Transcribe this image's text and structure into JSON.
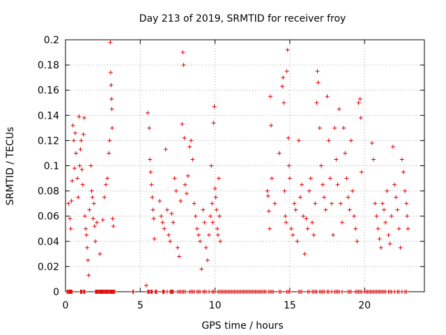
{
  "chart_data": {
    "type": "scatter",
    "title": "Day 213 of 2019, SRMTID for receiver froy",
    "xlabel": "GPS time / hours",
    "ylabel": "SRMTID / TECUs",
    "xlim": [
      0,
      24
    ],
    "ylim": [
      0,
      0.2
    ],
    "xticks": [
      0,
      5,
      10,
      15,
      20
    ],
    "yticks": [
      0,
      0.02,
      0.04,
      0.06,
      0.08,
      0.1,
      0.12,
      0.14,
      0.16,
      0.18,
      0.2
    ],
    "ytick_labels": [
      "0",
      "0.02",
      "0.04",
      "0.06",
      "0.08",
      "0.1",
      "0.12",
      "0.14",
      "0.16",
      "0.18",
      "0.2"
    ],
    "grid": true,
    "marker": "+",
    "color": "#e00000",
    "series": [
      {
        "name": "SRMTID",
        "points": [
          [
            0.2,
            0.07
          ],
          [
            0.3,
            0.058
          ],
          [
            0.35,
            0.05
          ],
          [
            0.4,
            0.072
          ],
          [
            0.45,
            0.088
          ],
          [
            0.5,
            0.132
          ],
          [
            0.55,
            0.12
          ],
          [
            0.6,
            0.098
          ],
          [
            0.65,
            0.126
          ],
          [
            0.7,
            0.11
          ],
          [
            0.8,
            0.09
          ],
          [
            0.85,
            0.075
          ],
          [
            0.9,
            0.139
          ],
          [
            0.95,
            0.1
          ],
          [
            1.0,
            0.113
          ],
          [
            1.05,
            0.12
          ],
          [
            1.1,
            0.097
          ],
          [
            1.15,
            0.085
          ],
          [
            1.2,
            0.125
          ],
          [
            1.25,
            0.138
          ],
          [
            1.3,
            0.06
          ],
          [
            1.35,
            0.05
          ],
          [
            1.4,
            0.045
          ],
          [
            1.45,
            0.035
          ],
          [
            1.5,
            0.025
          ],
          [
            1.55,
            0.013
          ],
          [
            1.6,
            0.065
          ],
          [
            1.7,
            0.1
          ],
          [
            1.75,
            0.08
          ],
          [
            1.8,
            0.075
          ],
          [
            1.85,
            0.058
          ],
          [
            1.9,
            0.07
          ],
          [
            1.95,
            0.052
          ],
          [
            2.0,
            0.04
          ],
          [
            2.1,
            0.055
          ],
          [
            2.3,
            0.03
          ],
          [
            2.5,
            0.057
          ],
          [
            2.6,
            0.075
          ],
          [
            2.7,
            0.085
          ],
          [
            2.8,
            0.09
          ],
          [
            2.9,
            0.11
          ],
          [
            2.95,
            0.12
          ],
          [
            3.0,
            0.198
          ],
          [
            3.02,
            0.174
          ],
          [
            3.05,
            0.164
          ],
          [
            3.08,
            0.153
          ],
          [
            3.1,
            0.145
          ],
          [
            3.12,
            0.13
          ],
          [
            3.15,
            0.058
          ],
          [
            3.2,
            0.052
          ],
          [
            5.4,
            0.005
          ],
          [
            5.5,
            0.142
          ],
          [
            5.6,
            0.13
          ],
          [
            5.65,
            0.105
          ],
          [
            5.7,
            0.095
          ],
          [
            5.75,
            0.085
          ],
          [
            5.8,
            0.075
          ],
          [
            5.85,
            0.065
          ],
          [
            5.9,
            0.058
          ],
          [
            5.95,
            0.042
          ],
          [
            6.3,
            0.072
          ],
          [
            6.4,
            0.06
          ],
          [
            6.5,
            0.055
          ],
          [
            6.6,
            0.05
          ],
          [
            6.7,
            0.113
          ],
          [
            6.8,
            0.065
          ],
          [
            6.9,
            0.045
          ],
          [
            7.0,
            0.04
          ],
          [
            7.1,
            0.062
          ],
          [
            7.2,
            0.055
          ],
          [
            7.3,
            0.09
          ],
          [
            7.4,
            0.08
          ],
          [
            7.5,
            0.035
          ],
          [
            7.6,
            0.028
          ],
          [
            7.7,
            0.072
          ],
          [
            7.8,
            0.133
          ],
          [
            7.85,
            0.19
          ],
          [
            7.9,
            0.18
          ],
          [
            7.95,
            0.122
          ],
          [
            8.0,
            0.085
          ],
          [
            8.1,
            0.078
          ],
          [
            8.2,
            0.092
          ],
          [
            8.3,
            0.115
          ],
          [
            8.4,
            0.12
          ],
          [
            8.5,
            0.105
          ],
          [
            8.6,
            0.07
          ],
          [
            8.7,
            0.06
          ],
          [
            8.8,
            0.05
          ],
          [
            8.9,
            0.045
          ],
          [
            9.0,
            0.04
          ],
          [
            9.1,
            0.018
          ],
          [
            9.2,
            0.065
          ],
          [
            9.3,
            0.055
          ],
          [
            9.4,
            0.035
          ],
          [
            9.5,
            0.025
          ],
          [
            9.6,
            0.045
          ],
          [
            9.7,
            0.06
          ],
          [
            9.75,
            0.1
          ],
          [
            9.8,
            0.07
          ],
          [
            9.85,
            0.055
          ],
          [
            9.9,
            0.134
          ],
          [
            9.95,
            0.147
          ],
          [
            10.0,
            0.082
          ],
          [
            10.05,
            0.075
          ],
          [
            10.1,
            0.065
          ],
          [
            10.15,
            0.05
          ],
          [
            10.2,
            0.045
          ],
          [
            10.25,
            0.09
          ],
          [
            10.3,
            0.06
          ],
          [
            10.35,
            0.04
          ],
          [
            13.5,
            0.08
          ],
          [
            13.55,
            0.076
          ],
          [
            13.6,
            0.064
          ],
          [
            13.65,
            0.05
          ],
          [
            13.7,
            0.155
          ],
          [
            13.75,
            0.132
          ],
          [
            13.8,
            0.09
          ],
          [
            14.0,
            0.07
          ],
          [
            14.3,
            0.11
          ],
          [
            14.5,
            0.163
          ],
          [
            14.55,
            0.17
          ],
          [
            14.6,
            0.15
          ],
          [
            14.65,
            0.08
          ],
          [
            14.7,
            0.06
          ],
          [
            14.75,
            0.055
          ],
          [
            14.8,
            0.175
          ],
          [
            14.85,
            0.192
          ],
          [
            14.9,
            0.122
          ],
          [
            14.95,
            0.1
          ],
          [
            15.0,
            0.09
          ],
          [
            15.1,
            0.05
          ],
          [
            15.2,
            0.045
          ],
          [
            15.3,
            0.07
          ],
          [
            15.4,
            0.065
          ],
          [
            15.5,
            0.04
          ],
          [
            15.6,
            0.12
          ],
          [
            15.7,
            0.075
          ],
          [
            15.8,
            0.085
          ],
          [
            15.9,
            0.06
          ],
          [
            16.0,
            0.03
          ],
          [
            16.1,
            0.058
          ],
          [
            16.2,
            0.05
          ],
          [
            16.3,
            0.08
          ],
          [
            16.4,
            0.09
          ],
          [
            16.5,
            0.055
          ],
          [
            16.6,
            0.045
          ],
          [
            16.7,
            0.07
          ],
          [
            16.8,
            0.15
          ],
          [
            16.85,
            0.175
          ],
          [
            16.9,
            0.166
          ],
          [
            17.0,
            0.13
          ],
          [
            17.1,
            0.1
          ],
          [
            17.2,
            0.085
          ],
          [
            17.3,
            0.075
          ],
          [
            17.4,
            0.065
          ],
          [
            17.5,
            0.155
          ],
          [
            17.6,
            0.12
          ],
          [
            17.7,
            0.09
          ],
          [
            17.8,
            0.07
          ],
          [
            17.9,
            0.045
          ],
          [
            18.0,
            0.13
          ],
          [
            18.1,
            0.105
          ],
          [
            18.2,
            0.085
          ],
          [
            18.3,
            0.145
          ],
          [
            18.4,
            0.07
          ],
          [
            18.5,
            0.055
          ],
          [
            18.6,
            0.13
          ],
          [
            18.7,
            0.11
          ],
          [
            18.8,
            0.09
          ],
          [
            18.9,
            0.075
          ],
          [
            19.0,
            0.065
          ],
          [
            19.1,
            0.12
          ],
          [
            19.2,
            0.08
          ],
          [
            19.3,
            0.06
          ],
          [
            19.4,
            0.05
          ],
          [
            19.5,
            0.04
          ],
          [
            19.6,
            0.15
          ],
          [
            19.7,
            0.153
          ],
          [
            19.75,
            0.138
          ],
          [
            19.8,
            0.095
          ],
          [
            20.5,
            0.118
          ],
          [
            20.6,
            0.105
          ],
          [
            20.7,
            0.07
          ],
          [
            20.8,
            0.06
          ],
          [
            20.9,
            0.05
          ],
          [
            21.0,
            0.042
          ],
          [
            21.1,
            0.035
          ],
          [
            21.2,
            0.07
          ],
          [
            21.3,
            0.065
          ],
          [
            21.4,
            0.055
          ],
          [
            21.5,
            0.08
          ],
          [
            21.6,
            0.045
          ],
          [
            21.7,
            0.038
          ],
          [
            21.8,
            0.06
          ],
          [
            21.9,
            0.115
          ],
          [
            22.0,
            0.085
          ],
          [
            22.1,
            0.075
          ],
          [
            22.2,
            0.065
          ],
          [
            22.3,
            0.05
          ],
          [
            22.4,
            0.035
          ],
          [
            22.5,
            0.105
          ],
          [
            22.6,
            0.095
          ],
          [
            22.7,
            0.08
          ],
          [
            22.8,
            0.07
          ],
          [
            22.85,
            0.06
          ],
          [
            22.9,
            0.05
          ]
        ],
        "zero_points": [
          0.1,
          0.15,
          0.2,
          0.25,
          0.3,
          0.35,
          0.4,
          0.45,
          1.0,
          1.05,
          1.1,
          1.2,
          1.25,
          1.3,
          2.0,
          2.05,
          2.1,
          2.15,
          2.2,
          2.25,
          2.3,
          2.35,
          2.4,
          2.45,
          2.5,
          2.55,
          2.6,
          2.65,
          2.7,
          2.75,
          2.8,
          2.85,
          2.9,
          2.95,
          3.0,
          3.05,
          3.1,
          3.15,
          3.2,
          3.25,
          3.3,
          4.5,
          4.55,
          5.5,
          5.55,
          5.6,
          5.7,
          5.75,
          5.8,
          6.0,
          6.05,
          6.1,
          6.5,
          6.55,
          6.6,
          6.8,
          7.0,
          7.05,
          7.1,
          7.15,
          7.2,
          7.5,
          7.6,
          7.7,
          7.8,
          7.9,
          8.0,
          8.3,
          8.4,
          8.5,
          8.6,
          8.8,
          8.9,
          9.0,
          9.2,
          9.3,
          9.4,
          9.6,
          9.8,
          9.9,
          10.0,
          10.2,
          10.3,
          10.4,
          10.5,
          10.6,
          10.7,
          10.8,
          10.9,
          11.0,
          11.1,
          11.2,
          11.3,
          11.4,
          11.5,
          11.6,
          11.7,
          11.8,
          11.9,
          12.0,
          12.1,
          12.2,
          12.3,
          12.4,
          12.5,
          12.6,
          12.7,
          12.8,
          12.9,
          13.0,
          13.1,
          13.2,
          13.3,
          13.4,
          13.6,
          13.7,
          13.8,
          13.9,
          14.3,
          14.4,
          14.8,
          14.9,
          15.0,
          15.6,
          15.7,
          15.8,
          16.2,
          16.3,
          16.5,
          16.6,
          16.7,
          16.8,
          17.0,
          17.1,
          17.2,
          17.3,
          17.5,
          17.6,
          17.8,
          18.0,
          18.1,
          18.2,
          18.3,
          18.5,
          18.9,
          19.0,
          19.1,
          19.4,
          19.5,
          19.6,
          19.7,
          19.8,
          20.0,
          20.1,
          20.2,
          20.3,
          20.4,
          20.5,
          20.6,
          20.7,
          20.8,
          20.9,
          21.0,
          21.1,
          21.2,
          21.3,
          21.4,
          21.6,
          21.7,
          21.8,
          22.0,
          22.2,
          22.3,
          22.5,
          22.7,
          22.8
        ]
      }
    ]
  }
}
